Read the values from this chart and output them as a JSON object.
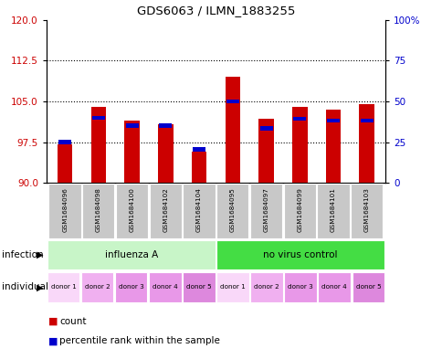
{
  "title": "GDS6063 / ILMN_1883255",
  "samples": [
    "GSM1684096",
    "GSM1684098",
    "GSM1684100",
    "GSM1684102",
    "GSM1684104",
    "GSM1684095",
    "GSM1684097",
    "GSM1684099",
    "GSM1684101",
    "GSM1684103"
  ],
  "red_values": [
    97.2,
    104.0,
    101.5,
    100.8,
    95.8,
    109.5,
    101.8,
    104.0,
    103.5,
    104.5
  ],
  "blue_values": [
    97.5,
    102.0,
    100.5,
    100.5,
    96.2,
    105.0,
    100.0,
    101.8,
    101.5,
    101.5
  ],
  "ylim_left": [
    90,
    120
  ],
  "yticks_left": [
    90,
    97.5,
    105,
    112.5,
    120
  ],
  "yticks_right": [
    0,
    25,
    50,
    75,
    100
  ],
  "yticklabels_right": [
    "0",
    "25",
    "50",
    "75",
    "100%"
  ],
  "infection_groups": [
    {
      "label": "influenza A",
      "start": 0,
      "end": 5,
      "color": "#c8f5c8"
    },
    {
      "label": "no virus control",
      "start": 5,
      "end": 10,
      "color": "#44dd44"
    }
  ],
  "individual_labels": [
    "donor 1",
    "donor 2",
    "donor 3",
    "donor 4",
    "donor 5",
    "donor 1",
    "donor 2",
    "donor 3",
    "donor 4",
    "donor 5"
  ],
  "individual_colors": [
    "#f9d8f9",
    "#f0b0f0",
    "#e898e8",
    "#e898e8",
    "#dd88dd",
    "#f9d8f9",
    "#f0b0f0",
    "#e898e8",
    "#e898e8",
    "#dd88dd"
  ],
  "bar_width": 0.45,
  "base_value": 90,
  "red_color": "#cc0000",
  "blue_color": "#0000cc",
  "left_tick_color": "#cc0000",
  "right_tick_color": "#0000cc",
  "legend_items": [
    {
      "color": "#cc0000",
      "label": "count"
    },
    {
      "color": "#0000cc",
      "label": "percentile rank within the sample"
    }
  ],
  "background_color": "#c8c8c8"
}
